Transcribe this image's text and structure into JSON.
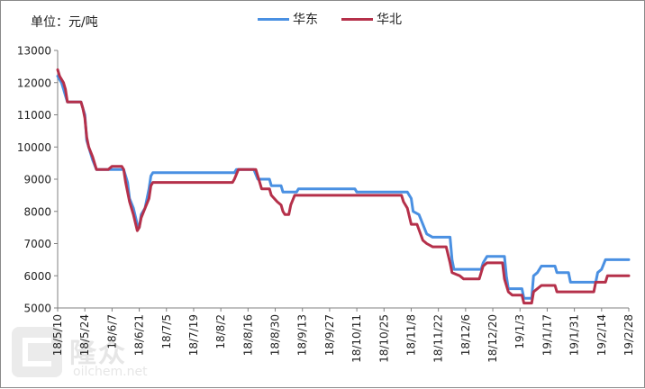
{
  "unit_label": "单位：元/吨",
  "colors": {
    "huadong": "#4a90e2",
    "huabei": "#b5304a",
    "axis": "#808080",
    "text": "#222222"
  },
  "watermark": {
    "cn": "隆众",
    "en": "oilchem.net"
  },
  "chart_data": {
    "type": "line",
    "ylim": [
      5000,
      13000
    ],
    "yticks": [
      "13000",
      "12000",
      "11000",
      "10000",
      "9000",
      "8000",
      "7000",
      "6000",
      "5000"
    ],
    "xlim": [
      "2018-05-10",
      "2019-02-28"
    ],
    "xticks": [
      "18/5/10",
      "18/5/24",
      "18/6/7",
      "18/6/21",
      "18/7/5",
      "18/7/19",
      "18/8/2",
      "18/8/16",
      "18/8/30",
      "18/9/13",
      "18/9/27",
      "18/10/11",
      "18/10/25",
      "18/11/8",
      "18/11/22",
      "18/12/6",
      "18/12/20",
      "19/1/3",
      "19/1/17",
      "19/1/31",
      "19/2/14",
      "19/2/28"
    ],
    "legend_position": "top-center",
    "grid": false,
    "series": [
      {
        "name": "华东",
        "color": "#4a90e2",
        "points": [
          [
            "2018-05-10",
            12200
          ],
          [
            "2018-05-12",
            12000
          ],
          [
            "2018-05-13",
            11800
          ],
          [
            "2018-05-14",
            11600
          ],
          [
            "2018-05-15",
            11400
          ],
          [
            "2018-05-22",
            11400
          ],
          [
            "2018-05-23",
            11200
          ],
          [
            "2018-05-24",
            11000
          ],
          [
            "2018-05-25",
            10200
          ],
          [
            "2018-05-26",
            10000
          ],
          [
            "2018-05-28",
            9600
          ],
          [
            "2018-05-30",
            9300
          ],
          [
            "2018-06-05",
            9300
          ],
          [
            "2018-06-07",
            9300
          ],
          [
            "2018-06-13",
            9300
          ],
          [
            "2018-06-14",
            9100
          ],
          [
            "2018-06-15",
            8900
          ],
          [
            "2018-06-16",
            8400
          ],
          [
            "2018-06-18",
            8100
          ],
          [
            "2018-06-20",
            7600
          ],
          [
            "2018-06-21",
            7500
          ],
          [
            "2018-06-22",
            7900
          ],
          [
            "2018-06-24",
            8100
          ],
          [
            "2018-06-26",
            8700
          ],
          [
            "2018-06-27",
            9100
          ],
          [
            "2018-06-28",
            9200
          ],
          [
            "2018-08-09",
            9200
          ],
          [
            "2018-08-10",
            9300
          ],
          [
            "2018-08-19",
            9300
          ],
          [
            "2018-08-21",
            9000
          ],
          [
            "2018-08-27",
            9000
          ],
          [
            "2018-08-28",
            8800
          ],
          [
            "2018-09-02",
            8800
          ],
          [
            "2018-09-03",
            8600
          ],
          [
            "2018-09-10",
            8600
          ],
          [
            "2018-09-11",
            8700
          ],
          [
            "2018-10-10",
            8700
          ],
          [
            "2018-10-11",
            8600
          ],
          [
            "2018-11-06",
            8600
          ],
          [
            "2018-11-08",
            8400
          ],
          [
            "2018-11-09",
            8000
          ],
          [
            "2018-11-12",
            7900
          ],
          [
            "2018-11-14",
            7600
          ],
          [
            "2018-11-16",
            7300
          ],
          [
            "2018-11-19",
            7200
          ],
          [
            "2018-11-28",
            7200
          ],
          [
            "2018-11-29",
            6500
          ],
          [
            "2018-11-30",
            6200
          ],
          [
            "2018-12-14",
            6200
          ],
          [
            "2018-12-15",
            6400
          ],
          [
            "2018-12-17",
            6600
          ],
          [
            "2018-12-26",
            6600
          ],
          [
            "2018-12-27",
            6000
          ],
          [
            "2018-12-28",
            5600
          ],
          [
            "2019-01-04",
            5600
          ],
          [
            "2019-01-05",
            5300
          ],
          [
            "2019-01-09",
            5300
          ],
          [
            "2019-01-10",
            6000
          ],
          [
            "2019-01-12",
            6100
          ],
          [
            "2019-01-14",
            6300
          ],
          [
            "2019-01-21",
            6300
          ],
          [
            "2019-01-22",
            6100
          ],
          [
            "2019-01-28",
            6100
          ],
          [
            "2019-01-29",
            5800
          ],
          [
            "2019-02-11",
            5800
          ],
          [
            "2019-02-12",
            6100
          ],
          [
            "2019-02-14",
            6200
          ],
          [
            "2019-02-16",
            6500
          ],
          [
            "2019-02-28",
            6500
          ]
        ]
      },
      {
        "name": "华北",
        "color": "#b5304a",
        "points": [
          [
            "2018-05-10",
            12400
          ],
          [
            "2018-05-11",
            12200
          ],
          [
            "2018-05-13",
            12000
          ],
          [
            "2018-05-14",
            11800
          ],
          [
            "2018-05-15",
            11400
          ],
          [
            "2018-05-22",
            11400
          ],
          [
            "2018-05-23",
            11200
          ],
          [
            "2018-05-24",
            10900
          ],
          [
            "2018-05-25",
            10300
          ],
          [
            "2018-05-26",
            10000
          ],
          [
            "2018-05-28",
            9700
          ],
          [
            "2018-05-30",
            9300
          ],
          [
            "2018-06-05",
            9300
          ],
          [
            "2018-06-07",
            9400
          ],
          [
            "2018-06-12",
            9400
          ],
          [
            "2018-06-13",
            9300
          ],
          [
            "2018-06-14",
            8900
          ],
          [
            "2018-06-16",
            8300
          ],
          [
            "2018-06-18",
            7900
          ],
          [
            "2018-06-20",
            7400
          ],
          [
            "2018-06-21",
            7500
          ],
          [
            "2018-06-22",
            7800
          ],
          [
            "2018-06-24",
            8100
          ],
          [
            "2018-06-26",
            8400
          ],
          [
            "2018-06-27",
            8800
          ],
          [
            "2018-06-28",
            8900
          ],
          [
            "2018-08-08",
            8900
          ],
          [
            "2018-08-09",
            9000
          ],
          [
            "2018-08-11",
            9300
          ],
          [
            "2018-08-20",
            9300
          ],
          [
            "2018-08-22",
            8900
          ],
          [
            "2018-08-23",
            8700
          ],
          [
            "2018-08-27",
            8700
          ],
          [
            "2018-08-28",
            8500
          ],
          [
            "2018-08-31",
            8300
          ],
          [
            "2018-09-02",
            8200
          ],
          [
            "2018-09-03",
            8000
          ],
          [
            "2018-09-04",
            7900
          ],
          [
            "2018-09-06",
            7900
          ],
          [
            "2018-09-07",
            8200
          ],
          [
            "2018-09-09",
            8500
          ],
          [
            "2018-09-10",
            8500
          ],
          [
            "2018-11-03",
            8500
          ],
          [
            "2018-11-04",
            8300
          ],
          [
            "2018-11-06",
            8100
          ],
          [
            "2018-11-08",
            7600
          ],
          [
            "2018-11-11",
            7600
          ],
          [
            "2018-11-14",
            7100
          ],
          [
            "2018-11-16",
            7000
          ],
          [
            "2018-11-19",
            6900
          ],
          [
            "2018-11-26",
            6900
          ],
          [
            "2018-11-28",
            6400
          ],
          [
            "2018-11-29",
            6100
          ],
          [
            "2018-12-03",
            6000
          ],
          [
            "2018-12-05",
            5900
          ],
          [
            "2018-12-13",
            5900
          ],
          [
            "2018-12-15",
            6300
          ],
          [
            "2018-12-17",
            6400
          ],
          [
            "2018-12-25",
            6400
          ],
          [
            "2018-12-26",
            5900
          ],
          [
            "2018-12-28",
            5500
          ],
          [
            "2018-12-30",
            5400
          ],
          [
            "2019-01-04",
            5400
          ],
          [
            "2019-01-05",
            5150
          ],
          [
            "2019-01-09",
            5150
          ],
          [
            "2019-01-10",
            5500
          ],
          [
            "2019-01-12",
            5600
          ],
          [
            "2019-01-14",
            5700
          ],
          [
            "2019-01-21",
            5700
          ],
          [
            "2019-01-22",
            5500
          ],
          [
            "2019-02-10",
            5500
          ],
          [
            "2019-02-11",
            5800
          ],
          [
            "2019-02-16",
            5800
          ],
          [
            "2019-02-17",
            6000
          ],
          [
            "2019-02-28",
            6000
          ]
        ]
      }
    ]
  }
}
